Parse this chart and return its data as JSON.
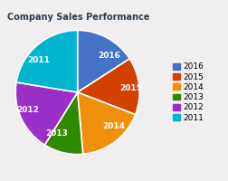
{
  "title": "Company Sales Performance",
  "labels": [
    "2016",
    "2015",
    "2014",
    "2013",
    "2012",
    "2011"
  ],
  "values": [
    17,
    16,
    19,
    11,
    20,
    24
  ],
  "colors": [
    "#4472C4",
    "#D44000",
    "#F0900A",
    "#2E8B00",
    "#9B30C8",
    "#00B5D0"
  ],
  "legend_labels": [
    "2016",
    "2015",
    "2014",
    "2013",
    "2012",
    "2011"
  ],
  "title_fontsize": 7,
  "label_fontsize": 6.5,
  "legend_fontsize": 6.5,
  "startangle": 90,
  "background_color": "#f0eeee"
}
